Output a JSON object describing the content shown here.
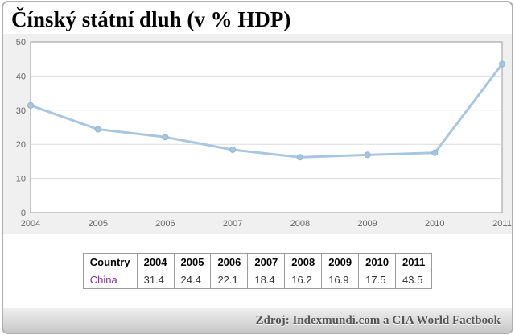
{
  "title": "Čínský státní dluh (v % HDP)",
  "chart_data": {
    "type": "line",
    "title": "Čínský státní dluh (v % HDP)",
    "categories": [
      "2004",
      "2005",
      "2006",
      "2007",
      "2008",
      "2009",
      "2010",
      "2011"
    ],
    "series": [
      {
        "name": "China",
        "values": [
          31.4,
          24.4,
          22.1,
          18.4,
          16.2,
          16.9,
          17.5,
          43.5
        ]
      }
    ],
    "xlabel": "",
    "ylabel": "",
    "ylim": [
      0,
      50
    ],
    "yticks": [
      0,
      10,
      20,
      30,
      40,
      50
    ],
    "grid": true,
    "legend_position": "none",
    "line_color": "#a8c6e0",
    "marker_stroke": "#8fb3cf"
  },
  "table": {
    "headers": [
      "Country",
      "2004",
      "2005",
      "2006",
      "2007",
      "2008",
      "2009",
      "2010",
      "2011"
    ],
    "rows": [
      {
        "country": "China",
        "values": [
          "31.4",
          "24.4",
          "22.1",
          "18.4",
          "16.2",
          "16.9",
          "17.5",
          "43.5"
        ]
      }
    ]
  },
  "footer": {
    "source": "Zdroj: Indexmundi.com a CIA World Factbook"
  }
}
